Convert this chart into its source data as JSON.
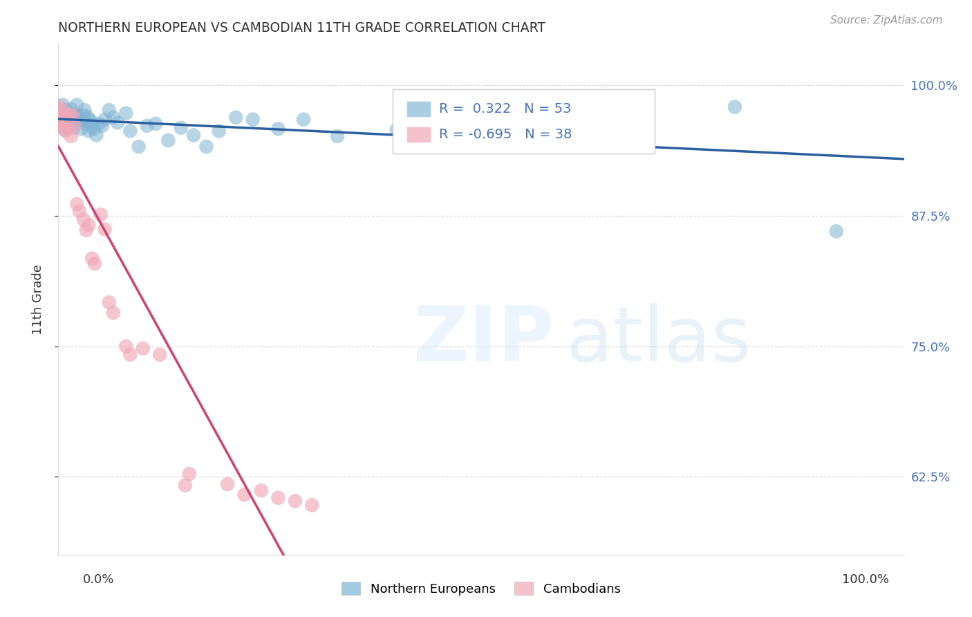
{
  "title": "NORTHERN EUROPEAN VS CAMBODIAN 11TH GRADE CORRELATION CHART",
  "source": "Source: ZipAtlas.com",
  "ylabel": "11th Grade",
  "legend_ne": "Northern Europeans",
  "legend_cam": "Cambodians",
  "R_ne": 0.322,
  "N_ne": 53,
  "R_cam": -0.695,
  "N_cam": 38,
  "ne_color": "#7fb3d3",
  "cam_color": "#f1a7b8",
  "ne_line_color": "#2c5f9e",
  "cam_line_color": "#d44070",
  "background_color": "#ffffff",
  "grid_color": "#cccccc",
  "title_color": "#333333",
  "right_tick_color": "#4472c4",
  "xlim": [
    0.0,
    1.0
  ],
  "ylim": [
    0.55,
    1.04
  ],
  "yticks": [
    0.625,
    0.75,
    0.875,
    1.0
  ],
  "ytick_labels": [
    "62.5%",
    "75.0%",
    "87.5%",
    "100.0%"
  ],
  "ne_points": [
    [
      0.002,
      0.972
    ],
    [
      0.005,
      0.981
    ],
    [
      0.007,
      0.961
    ],
    [
      0.008,
      0.957
    ],
    [
      0.009,
      0.976
    ],
    [
      0.01,
      0.97
    ],
    [
      0.012,
      0.969
    ],
    [
      0.013,
      0.966
    ],
    [
      0.015,
      0.977
    ],
    [
      0.016,
      0.964
    ],
    [
      0.018,
      0.959
    ],
    [
      0.019,
      0.971
    ],
    [
      0.021,
      0.969
    ],
    [
      0.022,
      0.981
    ],
    [
      0.023,
      0.971
    ],
    [
      0.025,
      0.966
    ],
    [
      0.027,
      0.958
    ],
    [
      0.028,
      0.965
    ],
    [
      0.03,
      0.971
    ],
    [
      0.031,
      0.976
    ],
    [
      0.033,
      0.963
    ],
    [
      0.035,
      0.969
    ],
    [
      0.036,
      0.956
    ],
    [
      0.038,
      0.966
    ],
    [
      0.04,
      0.961
    ],
    [
      0.042,
      0.958
    ],
    [
      0.045,
      0.952
    ],
    [
      0.048,
      0.963
    ],
    [
      0.052,
      0.961
    ],
    [
      0.055,
      0.967
    ],
    [
      0.06,
      0.976
    ],
    [
      0.065,
      0.969
    ],
    [
      0.07,
      0.964
    ],
    [
      0.08,
      0.973
    ],
    [
      0.085,
      0.956
    ],
    [
      0.095,
      0.941
    ],
    [
      0.105,
      0.961
    ],
    [
      0.115,
      0.963
    ],
    [
      0.13,
      0.947
    ],
    [
      0.145,
      0.959
    ],
    [
      0.16,
      0.952
    ],
    [
      0.175,
      0.941
    ],
    [
      0.19,
      0.956
    ],
    [
      0.21,
      0.969
    ],
    [
      0.23,
      0.967
    ],
    [
      0.26,
      0.958
    ],
    [
      0.29,
      0.967
    ],
    [
      0.33,
      0.951
    ],
    [
      0.4,
      0.957
    ],
    [
      0.5,
      0.974
    ],
    [
      0.62,
      0.981
    ],
    [
      0.8,
      0.979
    ],
    [
      0.92,
      0.86
    ]
  ],
  "cam_points": [
    [
      0.001,
      0.979
    ],
    [
      0.002,
      0.971
    ],
    [
      0.003,
      0.961
    ],
    [
      0.004,
      0.966
    ],
    [
      0.005,
      0.976
    ],
    [
      0.006,
      0.969
    ],
    [
      0.007,
      0.959
    ],
    [
      0.008,
      0.963
    ],
    [
      0.009,
      0.956
    ],
    [
      0.01,
      0.966
    ],
    [
      0.011,
      0.961
    ],
    [
      0.013,
      0.971
    ],
    [
      0.015,
      0.951
    ],
    [
      0.017,
      0.971
    ],
    [
      0.019,
      0.961
    ],
    [
      0.022,
      0.886
    ],
    [
      0.025,
      0.879
    ],
    [
      0.03,
      0.871
    ],
    [
      0.033,
      0.861
    ],
    [
      0.036,
      0.866
    ],
    [
      0.04,
      0.834
    ],
    [
      0.043,
      0.829
    ],
    [
      0.05,
      0.876
    ],
    [
      0.055,
      0.862
    ],
    [
      0.06,
      0.792
    ],
    [
      0.065,
      0.782
    ],
    [
      0.08,
      0.75
    ],
    [
      0.085,
      0.742
    ],
    [
      0.1,
      0.748
    ],
    [
      0.12,
      0.742
    ],
    [
      0.15,
      0.617
    ],
    [
      0.155,
      0.628
    ],
    [
      0.2,
      0.618
    ],
    [
      0.22,
      0.608
    ],
    [
      0.24,
      0.612
    ],
    [
      0.26,
      0.605
    ],
    [
      0.28,
      0.602
    ],
    [
      0.3,
      0.598
    ]
  ]
}
